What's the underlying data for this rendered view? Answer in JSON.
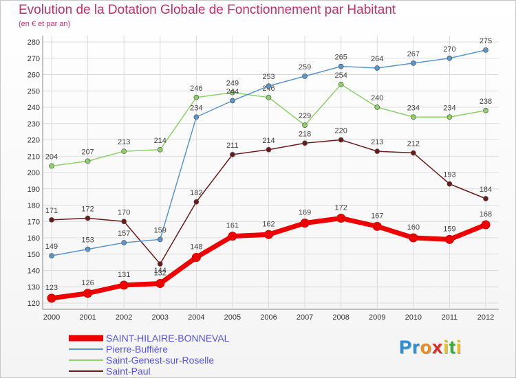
{
  "chart_data": {
    "type": "line",
    "title": "Evolution de la Dotation Globale de Fonctionnement par Habitant",
    "subtitle": "(en € et par an)",
    "x": [
      "2000",
      "2001",
      "2002",
      "2003",
      "2004",
      "2005",
      "2006",
      "2007",
      "2008",
      "2009",
      "2010",
      "2011",
      "2012"
    ],
    "ylim": [
      120,
      280
    ],
    "yticks": [
      120,
      130,
      140,
      150,
      160,
      170,
      180,
      190,
      200,
      210,
      220,
      230,
      240,
      250,
      260,
      270,
      280
    ],
    "grid": true,
    "legend_position": "bottom-left",
    "series": [
      {
        "name": "Saint-Paul",
        "color": "#6b1a1a",
        "values": [
          171,
          172,
          170,
          144,
          182,
          211,
          214,
          218,
          220,
          213,
          212,
          193,
          184
        ]
      },
      {
        "name": "Saint-Genest-sur-Roselle",
        "color": "#8ed06a",
        "values": [
          204,
          207,
          213,
          214,
          246,
          249,
          246,
          229,
          254,
          240,
          234,
          234,
          238
        ]
      },
      {
        "name": "Pierre-Buffière",
        "color": "#5a96cc",
        "values": [
          149,
          153,
          157,
          159,
          234,
          244,
          253,
          259,
          265,
          264,
          267,
          270,
          275
        ]
      },
      {
        "name": "SAINT-HILAIRE-BONNEVAL",
        "color": "#ee0000",
        "values": [
          123,
          126,
          131,
          132,
          148,
          161,
          162,
          169,
          172,
          167,
          160,
          159,
          168
        ]
      }
    ],
    "legend": [
      "SAINT-HILAIRE-BONNEVAL",
      "Pierre-Buffière",
      "Saint-Genest-sur-Roselle",
      "Saint-Paul"
    ]
  },
  "branding": {
    "logo_letters": [
      "P",
      "r",
      "o",
      "x",
      "i",
      "t",
      "i"
    ],
    "logo_colors": [
      "#2a8fd6",
      "#2a8fd6",
      "#f08a1a",
      "#e02a20",
      "#f0c020",
      "#3aaa3a",
      "#f0c020"
    ]
  }
}
